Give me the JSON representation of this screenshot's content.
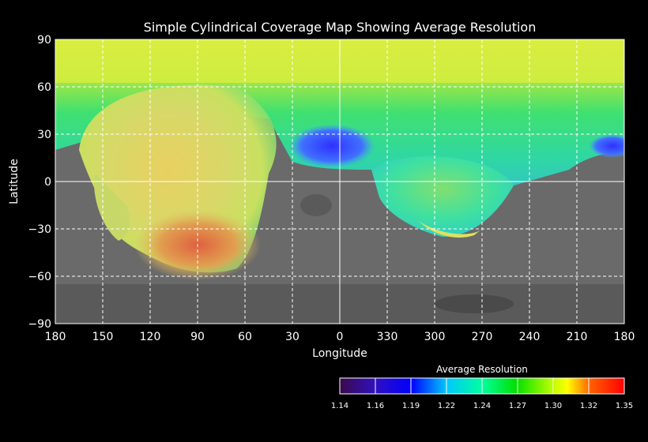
{
  "chart_data": {
    "type": "heatmap",
    "title": "Simple Cylindrical Coverage Map Showing Average Resolution",
    "xlabel": "Longitude",
    "ylabel": "Latitude",
    "x_ticks": [
      "180",
      "150",
      "120",
      "90",
      "60",
      "30",
      "0",
      "330",
      "300",
      "270",
      "240",
      "210",
      "180"
    ],
    "y_ticks": [
      90,
      60,
      30,
      0,
      -30,
      -60,
      -90
    ],
    "y_tick_labels": [
      "90",
      "60",
      "30",
      "0",
      "−30",
      "−60",
      "−90"
    ],
    "xlim": [
      180,
      -180
    ],
    "ylim": [
      -90,
      90
    ],
    "grid": true,
    "colorbar": {
      "title": "Average Resolution",
      "tick_labels": [
        "1.14",
        "1.16",
        "1.19",
        "1.22",
        "1.24",
        "1.27",
        "1.30",
        "1.32",
        "1.35"
      ],
      "range": [
        1.14,
        1.35
      ],
      "colors": [
        "#3a0a5a",
        "#1010ff",
        "#00c8ff",
        "#00ffb0",
        "#00f000",
        "#a0ff00",
        "#ffc000",
        "#ff5000",
        "#ff0000"
      ]
    }
  }
}
